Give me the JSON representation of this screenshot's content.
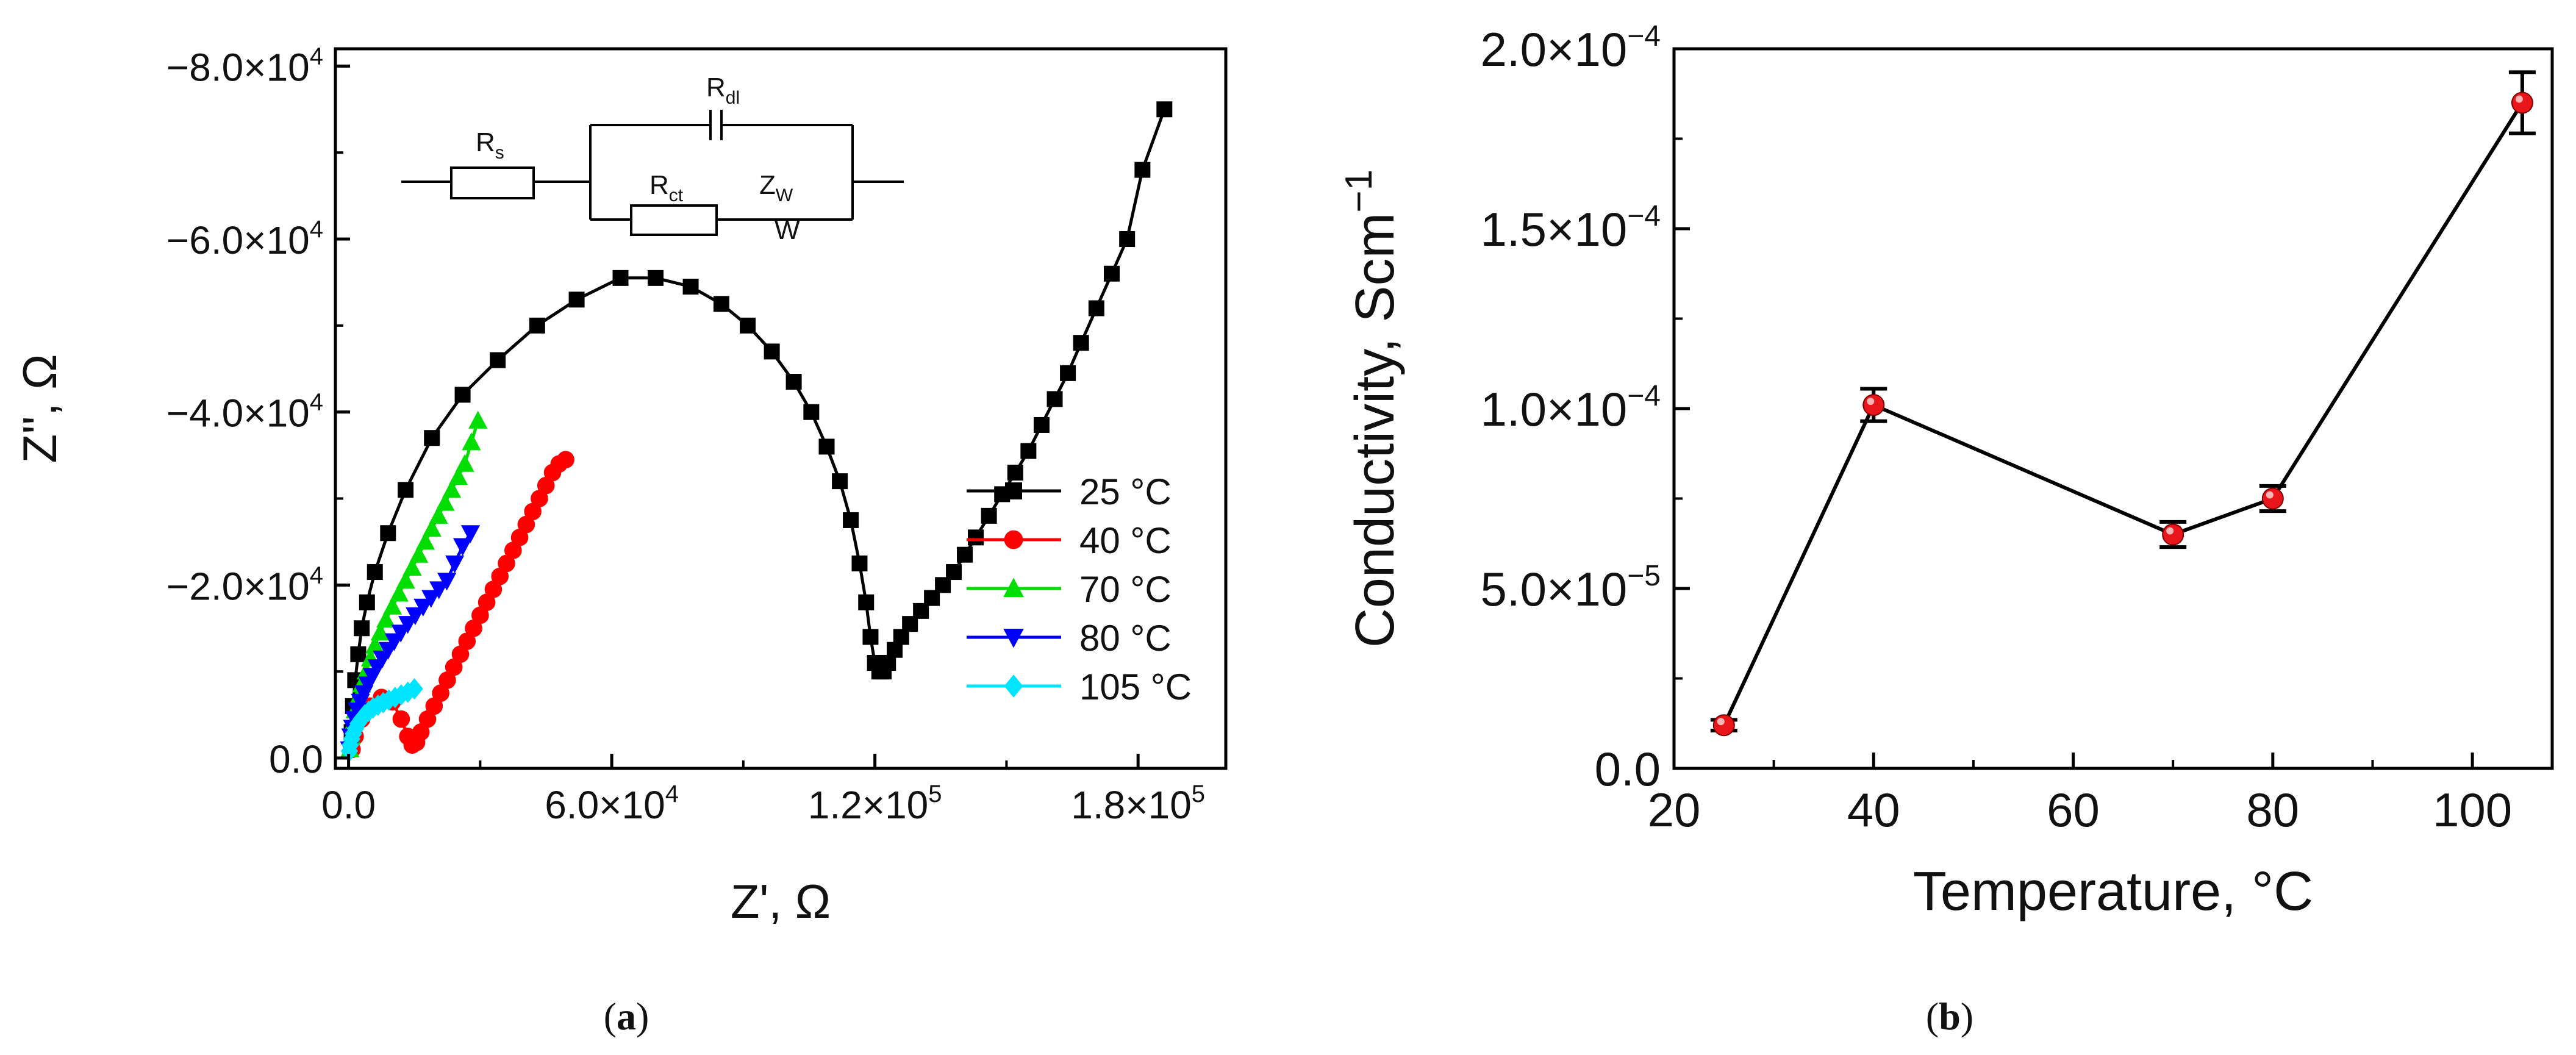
{
  "chart_data": [
    {
      "id": "a",
      "type": "scatter",
      "panel_label": "(a)",
      "panel_letter": "a",
      "xlabel": "Z', Ω",
      "ylabel": "Z'', Ω",
      "xlim": [
        -3000,
        200000
      ],
      "ylim": [
        -1200,
        82000
      ],
      "y_inverted_negative": true,
      "xticks": [
        {
          "value": 0,
          "label": "0.0"
        },
        {
          "value": 60000,
          "label": "6.0×10",
          "exp": "4"
        },
        {
          "value": 120000,
          "label": "1.2×10",
          "exp": "5"
        },
        {
          "value": 180000,
          "label": "1.8×10",
          "exp": "5"
        }
      ],
      "yticks": [
        {
          "value": 0,
          "label": "0.0"
        },
        {
          "value": 20000,
          "label": "−2.0×10",
          "exp": "4"
        },
        {
          "value": 40000,
          "label": "−4.0×10",
          "exp": "4"
        },
        {
          "value": 60000,
          "label": "−6.0×10",
          "exp": "4"
        },
        {
          "value": 80000,
          "label": "−8.0×10",
          "exp": "4"
        }
      ],
      "legend_position": "bottom-right",
      "series": [
        {
          "name": "25 °C",
          "color": "#000000",
          "marker": "square",
          "x": [
            700,
            1000,
            1500,
            2200,
            3000,
            4200,
            6000,
            9000,
            13000,
            19000,
            26000,
            34000,
            43000,
            52000,
            62000,
            70000,
            78000,
            85000,
            91000,
            96500,
            101500,
            105500,
            109000,
            112000,
            114500,
            116500,
            118000,
            119000,
            120000,
            121000,
            122000,
            123000,
            124500,
            126000,
            128000,
            130500,
            133000,
            135500,
            138000,
            140500,
            143000,
            146000,
            149000,
            152000,
            155000,
            158000,
            161000,
            164000,
            167000,
            170500,
            174000,
            177500,
            181000,
            186000
          ],
          "y": [
            3000,
            6000,
            9000,
            12000,
            15000,
            18000,
            21500,
            26000,
            31000,
            37000,
            42000,
            46000,
            50000,
            53000,
            55500,
            55500,
            54500,
            52500,
            50000,
            47000,
            43500,
            40000,
            36000,
            32000,
            27500,
            22500,
            18000,
            14000,
            11000,
            10000,
            10000,
            11000,
            12500,
            14000,
            15500,
            17000,
            18500,
            20000,
            21500,
            23500,
            25500,
            28000,
            30500,
            33000,
            35500,
            38500,
            41500,
            44500,
            48000,
            52000,
            56000,
            60000,
            68000,
            75000
          ]
        },
        {
          "name": "40 °C",
          "color": "#ff0000",
          "marker": "circle",
          "x": [
            800,
            1500,
            3000,
            5000,
            7500,
            10000,
            12000,
            13500,
            14500,
            15500,
            16500,
            18000,
            19500,
            21000,
            22500,
            24000,
            25500,
            27000,
            28500,
            30000,
            31500,
            33000,
            34500,
            36000,
            37500,
            39000,
            40500,
            42000,
            43500,
            45000,
            46500,
            48000,
            49500
          ],
          "y": [
            1000,
            2500,
            4500,
            6000,
            7000,
            6500,
            4500,
            2500,
            1500,
            1800,
            3000,
            4500,
            6000,
            7500,
            9000,
            10500,
            12000,
            13500,
            15000,
            16500,
            18000,
            19500,
            21000,
            22500,
            24000,
            25500,
            27000,
            28500,
            30000,
            31500,
            33000,
            34000,
            34500
          ]
        },
        {
          "name": "70 °C",
          "color": "#00dd00",
          "marker": "triangle-up",
          "x": [
            300,
            600,
            1000,
            1500,
            2200,
            3000,
            4000,
            5000,
            6000,
            7200,
            8500,
            10000,
            11500,
            13000,
            14500,
            16000,
            17500,
            19000,
            20500,
            22000,
            23500,
            25000,
            26500,
            28000,
            29500
          ],
          "y": [
            1000,
            2500,
            4000,
            5500,
            7000,
            8500,
            10000,
            11500,
            13000,
            14500,
            16000,
            17500,
            19000,
            20500,
            22000,
            23500,
            25000,
            26500,
            28000,
            29500,
            31000,
            32500,
            34000,
            36500,
            39000
          ]
        },
        {
          "name": "80 °C",
          "color": "#0000ff",
          "marker": "triangle-down",
          "x": [
            200,
            500,
            900,
            1400,
            2000,
            2700,
            3500,
            4400,
            5400,
            6500,
            7700,
            9000,
            10400,
            11900,
            13500,
            15200,
            17000,
            18800,
            20600,
            22400,
            24200,
            26000,
            27800
          ],
          "y": [
            1000,
            2500,
            3500,
            4500,
            5500,
            6500,
            7500,
            8500,
            9500,
            10500,
            11500,
            12500,
            13500,
            14500,
            15500,
            16500,
            17500,
            18500,
            19500,
            20500,
            22500,
            24500,
            26000
          ]
        },
        {
          "name": "105 °C",
          "color": "#00e5ff",
          "marker": "diamond",
          "x": [
            200,
            400,
            700,
            1100,
            1600,
            2200,
            2900,
            3700,
            4600,
            5600,
            6700,
            7900,
            9200,
            10600,
            12000,
            13500,
            15000
          ],
          "y": [
            800,
            1500,
            2200,
            2800,
            3400,
            4000,
            4500,
            5000,
            5400,
            5800,
            6100,
            6400,
            6700,
            7000,
            7300,
            7600,
            8000
          ]
        }
      ],
      "inset_circuit": {
        "labels": {
          "rs": "R",
          "rs_sub": "s",
          "rdl": "R",
          "rdl_sub": "dl",
          "rct": "R",
          "rct_sub": "ct",
          "zw": "Z",
          "zw_sub": "W",
          "w": "W"
        }
      }
    },
    {
      "id": "b",
      "type": "line",
      "panel_label": "(b)",
      "panel_letter": "b",
      "xlabel": "Temperature, °C",
      "ylabel": "Conductivity, Scm",
      "ylabel_exp": "−1",
      "xlim": [
        20,
        108
      ],
      "ylim": [
        0,
        0.0002
      ],
      "xticks": [
        {
          "value": 20,
          "label": "20"
        },
        {
          "value": 40,
          "label": "40"
        },
        {
          "value": 60,
          "label": "60"
        },
        {
          "value": 80,
          "label": "80"
        },
        {
          "value": 100,
          "label": "100"
        }
      ],
      "yticks": [
        {
          "value": 0,
          "label": "0.0"
        },
        {
          "value": 5e-05,
          "label": "5.0×10",
          "exp": "−5"
        },
        {
          "value": 0.0001,
          "label": "1.0×10",
          "exp": "−4"
        },
        {
          "value": 0.00015,
          "label": "1.5×10",
          "exp": "−4"
        },
        {
          "value": 0.0002,
          "label": "2.0×10",
          "exp": "−4"
        }
      ],
      "series": [
        {
          "name": "conductivity",
          "color": "#000000",
          "marker_color": "#e8161b",
          "x": [
            25,
            40,
            70,
            80,
            105
          ],
          "y": [
            1.2e-05,
            0.000101,
            6.5e-05,
            7.5e-05,
            0.000185
          ],
          "err": [
            1.5e-06,
            4.5e-06,
            3.5e-06,
            3.5e-06,
            8.5e-06
          ]
        }
      ]
    }
  ]
}
